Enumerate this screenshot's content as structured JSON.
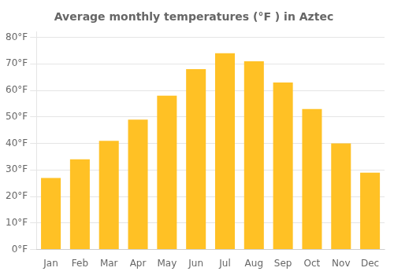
{
  "chart_data": {
    "type": "bar",
    "title": "Average monthly temperatures (°F ) in Aztec",
    "categories": [
      "Jan",
      "Feb",
      "Mar",
      "Apr",
      "May",
      "Jun",
      "Jul",
      "Aug",
      "Sep",
      "Oct",
      "Nov",
      "Dec"
    ],
    "values": [
      27,
      34,
      41,
      49,
      58,
      68,
      74,
      71,
      63,
      53,
      40,
      29
    ],
    "color": "#FFC125",
    "ylim": [
      0,
      82
    ],
    "yticks": [
      {
        "value": 0,
        "label": "0°F"
      },
      {
        "value": 10,
        "label": "10°F"
      },
      {
        "value": 20,
        "label": "20°F"
      },
      {
        "value": 30,
        "label": "30°F"
      },
      {
        "value": 40,
        "label": "40°F"
      },
      {
        "value": 50,
        "label": "50°F"
      },
      {
        "value": 60,
        "label": "60°F"
      },
      {
        "value": 70,
        "label": "70°F"
      },
      {
        "value": 80,
        "label": "80°F"
      }
    ],
    "grid": true
  }
}
